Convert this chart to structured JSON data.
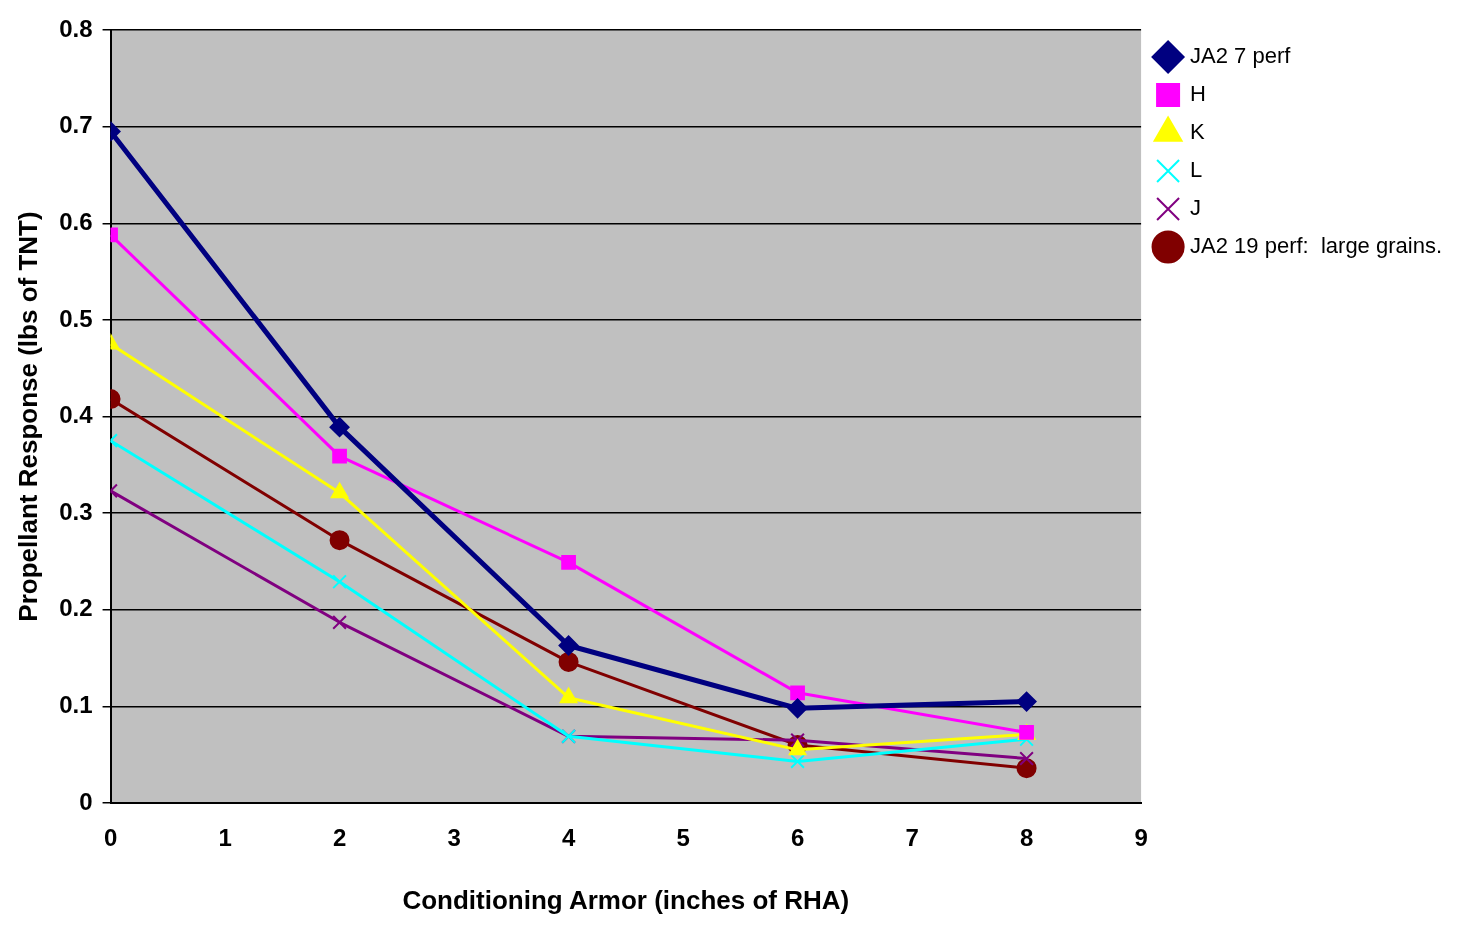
{
  "chart_data": {
    "type": "line",
    "xlabel": "Conditioning Armor (inches of RHA)",
    "ylabel": "Propellant Response (lbs of TNT)",
    "x": [
      0,
      2,
      4,
      6,
      8
    ],
    "xlim": [
      0,
      9
    ],
    "xticks": [
      0,
      1,
      2,
      3,
      4,
      5,
      6,
      7,
      8,
      9
    ],
    "ylim": [
      0,
      0.8
    ],
    "yticks": [
      0,
      0.1,
      0.2,
      0.3,
      0.4,
      0.5,
      0.6,
      0.7,
      0.8
    ],
    "grid": "y",
    "legend": "top right",
    "line_style": "solid",
    "series": [
      {
        "name": "JA2 7 perf",
        "color": "#000080",
        "marker": "diamond",
        "values": [
          0.695,
          0.389,
          0.163,
          0.098,
          0.105
        ]
      },
      {
        "name": "H",
        "color": "#ff00ff",
        "marker": "square",
        "values": [
          0.588,
          0.359,
          0.249,
          0.114,
          0.073
        ]
      },
      {
        "name": "K",
        "color": "#ffff00",
        "marker": "triangle",
        "values": [
          0.475,
          0.321,
          0.109,
          0.055,
          0.071
        ]
      },
      {
        "name": "L",
        "color": "#00ffff",
        "marker": "cross",
        "values": [
          0.375,
          0.229,
          0.069,
          0.043,
          0.066
        ]
      },
      {
        "name": "J",
        "color": "#800080",
        "marker": "cross",
        "values": [
          0.323,
          0.187,
          0.069,
          0.065,
          0.046
        ]
      },
      {
        "name": "JA2 19 perf:  large grains.",
        "color": "#800000",
        "marker": "circle",
        "values": [
          0.418,
          0.272,
          0.146,
          0.06,
          0.036
        ]
      }
    ]
  }
}
